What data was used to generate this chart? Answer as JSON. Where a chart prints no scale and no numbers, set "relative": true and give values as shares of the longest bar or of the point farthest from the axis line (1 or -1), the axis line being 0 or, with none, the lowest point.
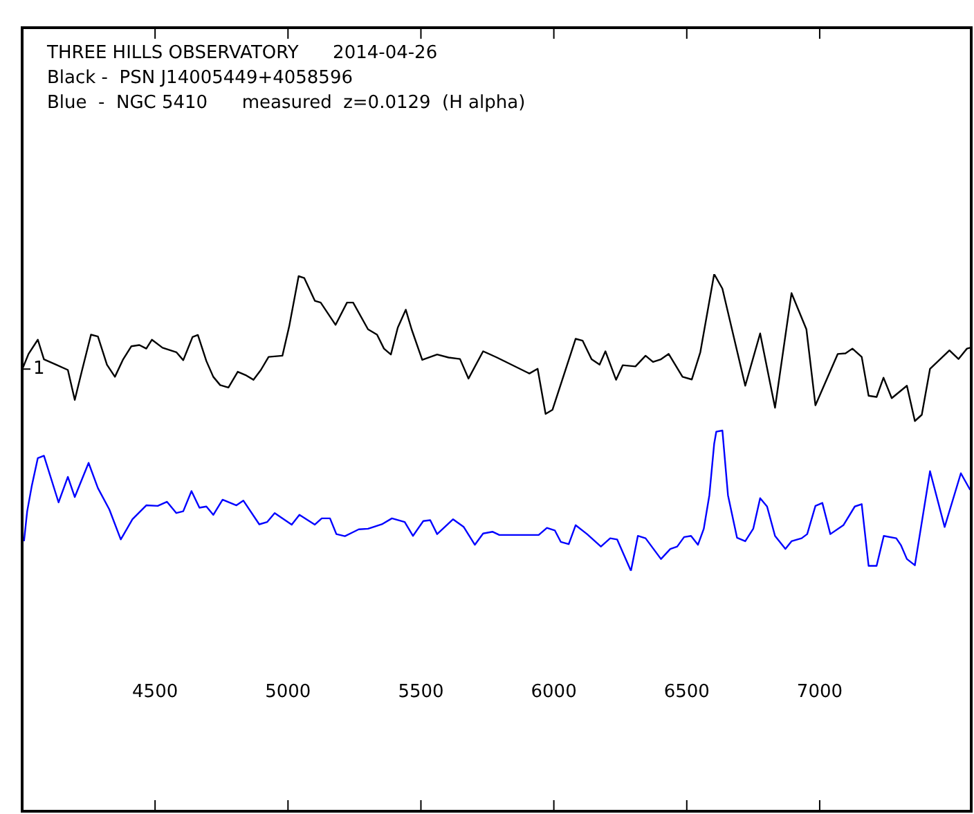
{
  "chart_data": {
    "type": "line",
    "title": "THREE HILLS OBSERVATORY      2014-04-26",
    "relative": true,
    "legend": false,
    "grid": false,
    "marker": "none",
    "line_style": "solid",
    "annotations": [
      "Black -  PSN J14005449+4058596",
      "Blue  -  NGC 5410      measured  z=0.0129  (H alpha)",
      {
        "text": "1",
        "x": 4000,
        "y": 0.68
      }
    ],
    "xlim": [
      4000,
      7570
    ],
    "xticks": [
      4500,
      5000,
      5500,
      6000,
      6500,
      7000
    ],
    "series": [
      {
        "color": "#000000",
        "x": [
          4002,
          4024,
          4059,
          4082,
          4128,
          4172,
          4198,
          4224,
          4259,
          4285,
          4319,
          4349,
          4380,
          4411,
          4441,
          4467,
          4488,
          4528,
          4580,
          4606,
          4641,
          4661,
          4693,
          4719,
          4745,
          4776,
          4811,
          4840,
          4870,
          4898,
          4927,
          4979,
          5005,
          5040,
          5061,
          5101,
          5123,
          5179,
          5222,
          5245,
          5301,
          5335,
          5361,
          5387,
          5413,
          5443,
          5465,
          5505,
          5561,
          5604,
          5647,
          5679,
          5734,
          5786,
          5908,
          5939,
          5969,
          5995,
          6082,
          6108,
          6142,
          6172,
          6194,
          6234,
          6259,
          6307,
          6345,
          6373,
          6403,
          6432,
          6484,
          6519,
          6551,
          6603,
          6634,
          6720,
          6776,
          6832,
          6894,
          6950,
          6984,
          7068,
          7097,
          7123,
          7158,
          7184,
          7214,
          7240,
          7271,
          7328,
          7358,
          7384,
          7415,
          7488,
          7522,
          7554,
          7566
        ],
        "values": [
          0.683,
          0.731,
          0.779,
          0.713,
          0.695,
          0.677,
          0.576,
          0.671,
          0.796,
          0.79,
          0.695,
          0.654,
          0.713,
          0.757,
          0.761,
          0.749,
          0.779,
          0.752,
          0.737,
          0.71,
          0.788,
          0.795,
          0.707,
          0.654,
          0.626,
          0.618,
          0.671,
          0.66,
          0.644,
          0.677,
          0.721,
          0.725,
          0.826,
          0.993,
          0.987,
          0.91,
          0.904,
          0.829,
          0.904,
          0.904,
          0.814,
          0.796,
          0.749,
          0.729,
          0.82,
          0.88,
          0.814,
          0.711,
          0.729,
          0.719,
          0.714,
          0.648,
          0.74,
          0.719,
          0.665,
          0.681,
          0.529,
          0.543,
          0.782,
          0.776,
          0.713,
          0.695,
          0.74,
          0.644,
          0.693,
          0.689,
          0.725,
          0.704,
          0.713,
          0.731,
          0.654,
          0.645,
          0.737,
          1,
          0.951,
          0.624,
          0.8,
          0.55,
          0.936,
          0.814,
          0.558,
          0.731,
          0.733,
          0.749,
          0.721,
          0.59,
          0.586,
          0.651,
          0.582,
          0.624,
          0.505,
          0.526,
          0.681,
          0.743,
          0.714,
          0.749,
          0.752
        ]
      },
      {
        "color": "#0000ff",
        "x": [
          4007,
          4019,
          4036,
          4059,
          4082,
          4137,
          4172,
          4198,
          4250,
          4285,
          4328,
          4371,
          4415,
          4467,
          4510,
          4545,
          4580,
          4606,
          4637,
          4667,
          4693,
          4719,
          4754,
          4806,
          4832,
          4892,
          4922,
          4950,
          5014,
          5043,
          5101,
          5127,
          5158,
          5182,
          5214,
          5266,
          5301,
          5353,
          5391,
          5439,
          5470,
          5509,
          5535,
          5561,
          5621,
          5661,
          5703,
          5734,
          5769,
          5795,
          5943,
          5974,
          6004,
          6026,
          6056,
          6082,
          6125,
          6177,
          6212,
          6238,
          6290,
          6316,
          6345,
          6403,
          6438,
          6464,
          6490,
          6516,
          6542,
          6564,
          6585,
          6603,
          6611,
          6634,
          6655,
          6689,
          6720,
          6750,
          6776,
          6802,
          6832,
          6871,
          6894,
          6932,
          6953,
          6984,
          7010,
          7040,
          7089,
          7132,
          7158,
          7184,
          7214,
          7241,
          7288,
          7306,
          7328,
          7358,
          7415,
          7470,
          7531,
          7566
        ],
        "values": [
          0.1,
          0.201,
          0.285,
          0.38,
          0.388,
          0.231,
          0.317,
          0.249,
          0.364,
          0.279,
          0.207,
          0.106,
          0.174,
          0.221,
          0.219,
          0.233,
          0.195,
          0.201,
          0.269,
          0.213,
          0.217,
          0.189,
          0.24,
          0.221,
          0.237,
          0.157,
          0.165,
          0.195,
          0.156,
          0.189,
          0.156,
          0.177,
          0.177,
          0.124,
          0.117,
          0.14,
          0.142,
          0.157,
          0.177,
          0.165,
          0.118,
          0.168,
          0.171,
          0.124,
          0.174,
          0.148,
          0.088,
          0.126,
          0.132,
          0.121,
          0.121,
          0.145,
          0.136,
          0.098,
          0.09,
          0.154,
          0.124,
          0.082,
          0.11,
          0.106,
          0,
          0.118,
          0.11,
          0.04,
          0.074,
          0.082,
          0.114,
          0.118,
          0.088,
          0.142,
          0.255,
          0.428,
          0.469,
          0.473,
          0.255,
          0.112,
          0.1,
          0.142,
          0.245,
          0.217,
          0.118,
          0.074,
          0.1,
          0.11,
          0.124,
          0.219,
          0.229,
          0.124,
          0.154,
          0.217,
          0.225,
          0.017,
          0.017,
          0.118,
          0.11,
          0.086,
          0.04,
          0.019,
          0.336,
          0.148,
          0.329,
          0.273
        ]
      }
    ]
  }
}
